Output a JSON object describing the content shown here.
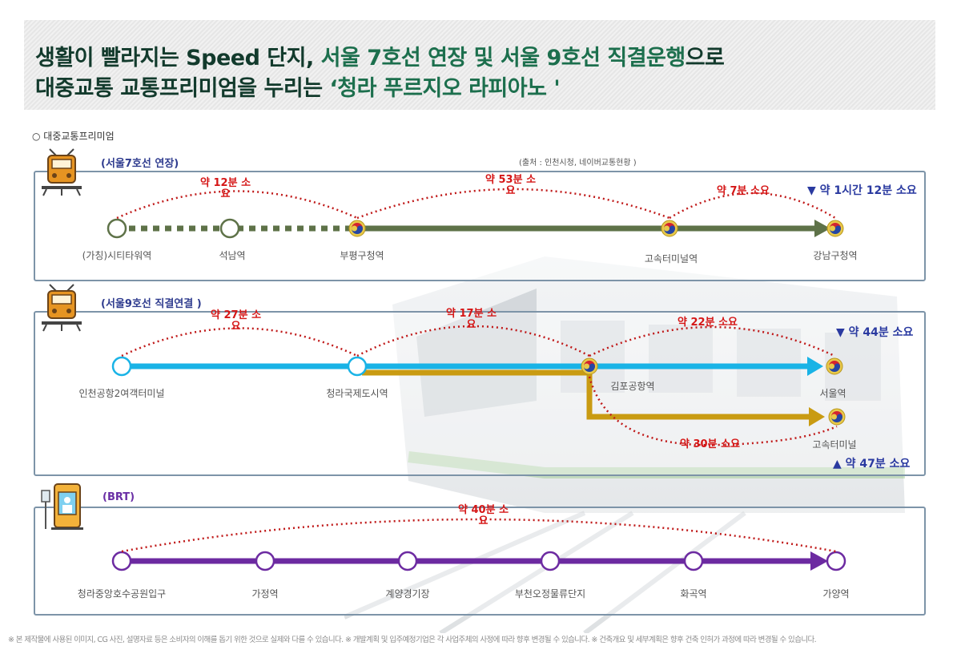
{
  "header": {
    "line1_prefix": "생활이 빨라지는 Speed 단지, ",
    "line1_accent": "서울 7호선 연장 및 서울 9호선 직결운행",
    "line1_suffix": "으로",
    "line2_prefix": "대중교통 교통프리미엄을 누리는 ",
    "line2_accent": "‘청라 푸르지오 라피아노 '"
  },
  "section_title": "○ 대중교통프리미엄",
  "source_note": "(출처 : 인천시청, 네이버교통현황 )",
  "colors": {
    "line7": "#5e7248",
    "line9": "#19b3e6",
    "express9": "#c99b12",
    "brt": "#6c2aa1",
    "time_red": "#d51616",
    "total_blue": "#2a3aa0",
    "panel_border": "#7d94a8"
  },
  "panels": {
    "line7": {
      "label": "(서울7호선 연장)",
      "icon": "train-icon",
      "stations": [
        "(가칭)시티타워역",
        "석남역",
        "부평구청역",
        "고속터미널역",
        "강남구청역"
      ],
      "segments": [
        {
          "l1": "약 12분 소",
          "l2": "요"
        },
        {
          "l1": "약 53분 소",
          "l2": "요"
        },
        {
          "l1": "약 7분 소요",
          "l2": ""
        }
      ],
      "total": "▼ 약  1시간 12분  소요"
    },
    "line9": {
      "label": "(서울9호선 직결연결 )",
      "icon": "train-icon",
      "stations": [
        "인천공항2여객터미널",
        "청라국제도시역",
        "김포공항역",
        "서울역",
        "고속터미널"
      ],
      "segments": [
        {
          "l1": "약 27분 소",
          "l2": "요"
        },
        {
          "l1": "약 17분 소",
          "l2": "요"
        },
        {
          "l1": "약 22분 소요",
          "l2": ""
        },
        {
          "l1": "약 30분 소요",
          "l2": ""
        }
      ],
      "total_top": "▼ 약  44분  소요",
      "total_bottom": "▲ 약  47분  소요"
    },
    "brt": {
      "label": "(BRT)",
      "icon": "bus-stop-icon",
      "stations": [
        "청라중앙호수공원입구",
        "가정역",
        "계양경기장",
        "부천오정물류단지",
        "화곡역",
        "가양역"
      ],
      "segments": [
        {
          "l1": "약 40분 소",
          "l2": "요"
        }
      ]
    }
  },
  "footer": "※ 본 제작물에 사용된 이미지, CG 사진, 설명자료 등은 소비자의 이해를 돕기 위한 것으로 실제와 다를 수 있습니다.   ※ 개발계획 및 입주예정기업은 각 사업주체의 사정에 따라 향후 변경될 수 있습니다.  ※ 건축개요 및 세부계획은 향후 건축 인허가 과정에 따라 변경될 수 있습니다."
}
